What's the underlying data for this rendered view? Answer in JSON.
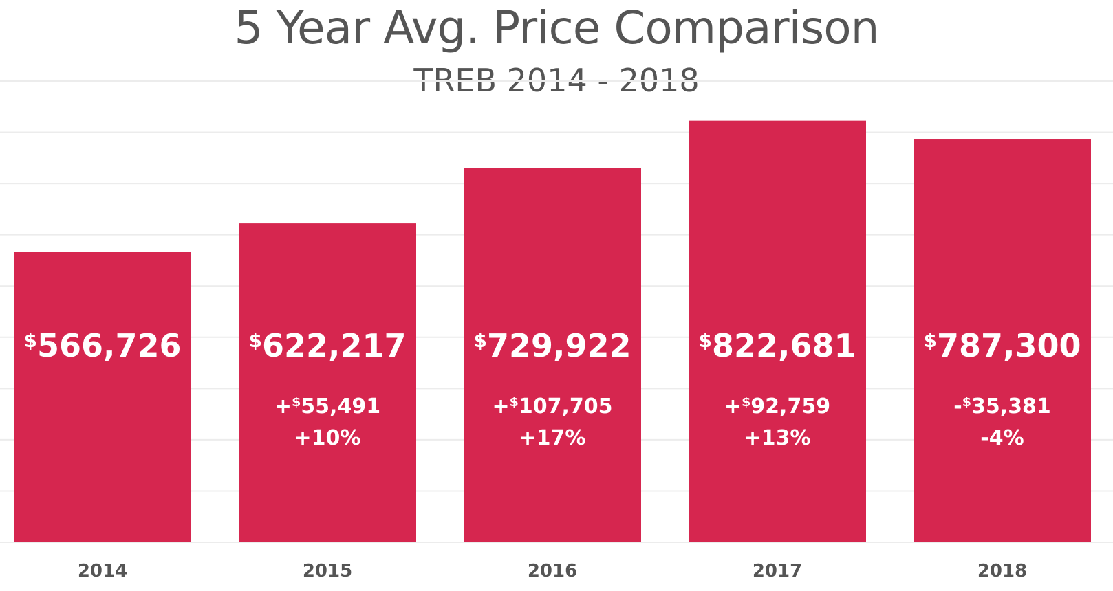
{
  "colors": {
    "bar": "#d6264f",
    "text": "#555555",
    "grid": "#ececec",
    "label": "#ffffff"
  },
  "chart_data": {
    "type": "bar",
    "title": "5 Year Avg. Price Comparison",
    "subtitle": "TREB 2014 - 2018",
    "categories": [
      "2014",
      "2015",
      "2016",
      "2017",
      "2018"
    ],
    "values": [
      566726,
      622217,
      729922,
      822681,
      787300
    ],
    "value_labels": [
      "566,726",
      "622,217",
      "729,922",
      "822,681",
      "787,300"
    ],
    "change_amounts": [
      "",
      "+$55,491",
      "+$107,705",
      "+$92,759",
      "-$35,381"
    ],
    "change_percents": [
      "",
      "+10%",
      "+17%",
      "+13%",
      "-4%"
    ],
    "currency_symbol": "$",
    "ylim": [
      0,
      900000
    ],
    "grid": true,
    "legend": "none"
  }
}
